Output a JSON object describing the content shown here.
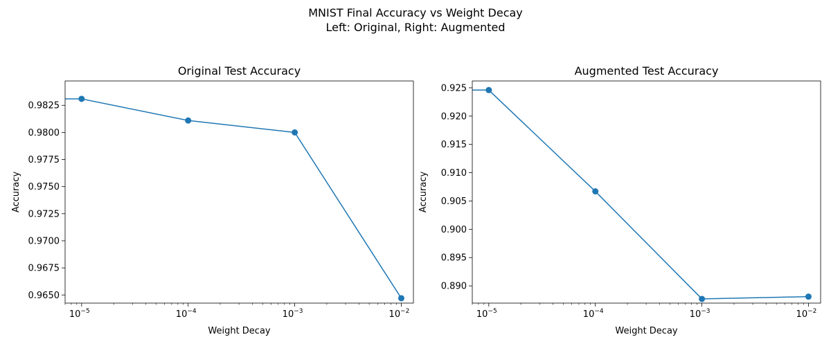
{
  "figure": {
    "suptitle_line1": "MNIST Final Accuracy vs Weight Decay",
    "suptitle_line2": "Left: Original, Right: Augmented"
  },
  "chart_data": [
    {
      "type": "line",
      "title": "Original Test Accuracy",
      "xlabel": "Weight Decay",
      "ylabel": "Accuracy",
      "xscale": "log",
      "xticks": [
        {
          "value": 1e-05,
          "base": "10",
          "exp": "−5"
        },
        {
          "value": 0.0001,
          "base": "10",
          "exp": "−4"
        },
        {
          "value": 0.001,
          "base": "10",
          "exp": "−3"
        },
        {
          "value": 0.01,
          "base": "10",
          "exp": "−2"
        }
      ],
      "yticks": [
        "0.9650",
        "0.9675",
        "0.9700",
        "0.9725",
        "0.9750",
        "0.9775",
        "0.9800",
        "0.9825"
      ],
      "series": [
        {
          "color": "#1f77b4",
          "marker": "circle",
          "x": [
            0,
            1e-05,
            0.0001,
            0.001,
            0.01
          ],
          "y": [
            0.9831,
            0.9831,
            0.9811,
            0.98,
            0.9647
          ]
        }
      ],
      "grid": false
    },
    {
      "type": "line",
      "title": "Augmented Test Accuracy",
      "xlabel": "Weight Decay",
      "ylabel": "Accuracy",
      "xscale": "log",
      "xticks": [
        {
          "value": 1e-05,
          "base": "10",
          "exp": "−5"
        },
        {
          "value": 0.0001,
          "base": "10",
          "exp": "−4"
        },
        {
          "value": 0.001,
          "base": "10",
          "exp": "−3"
        },
        {
          "value": 0.01,
          "base": "10",
          "exp": "−2"
        }
      ],
      "yticks": [
        "0.890",
        "0.895",
        "0.900",
        "0.905",
        "0.910",
        "0.915",
        "0.920",
        "0.925"
      ],
      "series": [
        {
          "color": "#1f77b4",
          "marker": "circle",
          "x": [
            0,
            1e-05,
            0.0001,
            0.001,
            0.01
          ],
          "y": [
            0.9246,
            0.9246,
            0.9067,
            0.8877,
            0.8881
          ]
        }
      ],
      "grid": false
    }
  ]
}
